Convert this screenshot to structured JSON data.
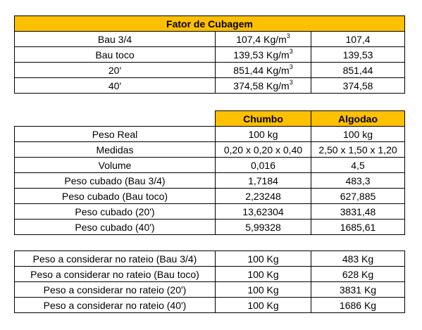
{
  "fator": {
    "title": "Fator de Cubagem",
    "rows": [
      {
        "label": "Bau 3/4",
        "value": "107,4 Kg/m",
        "sup": "3",
        "num": "107,4"
      },
      {
        "label": "Bau toco",
        "value": "139,53 Kg/m",
        "sup": "3",
        "num": "139,53"
      },
      {
        "label": "20'",
        "value": "851,44 Kg/m",
        "sup": "3",
        "num": "851,44"
      },
      {
        "label": "40'",
        "value": "374,58 Kg/m",
        "sup": "3",
        "num": "374,58"
      }
    ]
  },
  "comparacao": {
    "headers": [
      "Chumbo",
      "Algodao"
    ],
    "rows": [
      {
        "label": "Peso Real",
        "chumbo": "100 kg",
        "algodao": "100 kg"
      },
      {
        "label": "Medidas",
        "chumbo": "0,20 x 0,20 x 0,40",
        "algodao": "2,50 x 1,50 x 1,20"
      },
      {
        "label": "Volume",
        "chumbo": "0,016",
        "algodao": "4,5"
      },
      {
        "label": "Peso cubado (Bau 3/4)",
        "chumbo": "1,7184",
        "algodao": "483,3"
      },
      {
        "label": "Peso cubado (Bau toco)",
        "chumbo": "2,23248",
        "algodao": "627,885"
      },
      {
        "label": "Peso cubado (20')",
        "chumbo": "13,62304",
        "algodao": "3831,48"
      },
      {
        "label": "Peso cubado (40')",
        "chumbo": "5,99328",
        "algodao": "1685,61"
      }
    ]
  },
  "rateio": {
    "rows": [
      {
        "label": "Peso a considerar no rateio (Bau 3/4)",
        "chumbo": "100 Kg",
        "algodao": "483 Kg"
      },
      {
        "label": "Peso a considerar no rateio (Bau toco)",
        "chumbo": "100 Kg",
        "algodao": "628 Kg"
      },
      {
        "label": "Peso a considerar no rateio (20')",
        "chumbo": "100 Kg",
        "algodao": "3831 Kg"
      },
      {
        "label": "Peso a considerar no rateio (40')",
        "chumbo": "100 Kg",
        "algodao": "1686 Kg"
      }
    ]
  },
  "colors": {
    "header_fill": "#FFC000"
  }
}
